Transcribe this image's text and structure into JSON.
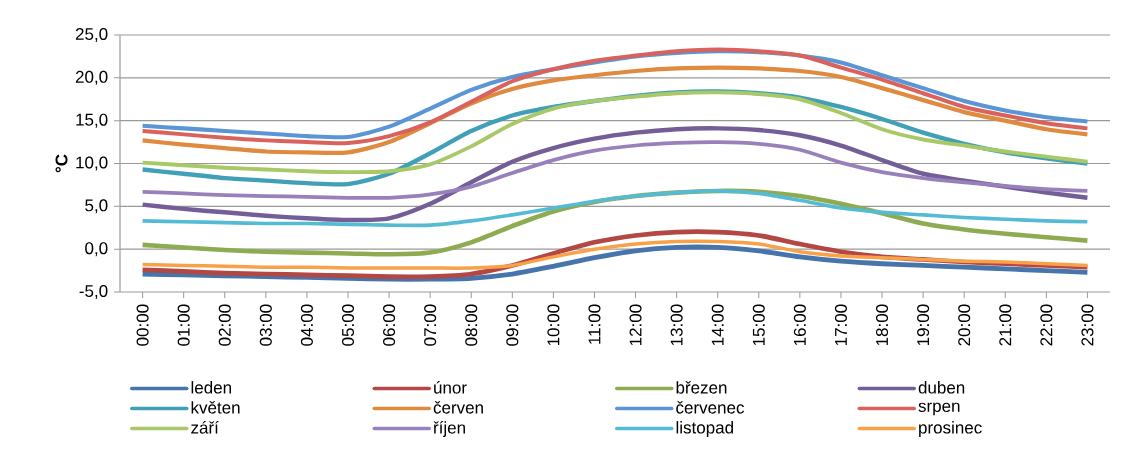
{
  "chart_data": {
    "type": "line",
    "ylabel": "°C",
    "categories": [
      "00:00",
      "01:00",
      "02:00",
      "03:00",
      "04:00",
      "05:00",
      "06:00",
      "07:00",
      "08:00",
      "09:00",
      "10:00",
      "11:00",
      "12:00",
      "13:00",
      "14:00",
      "15:00",
      "16:00",
      "17:00",
      "18:00",
      "19:00",
      "20:00",
      "21:00",
      "22:00",
      "23:00"
    ],
    "ylim": [
      -5,
      25
    ],
    "yticks": [
      {
        "value": -5,
        "label": "-5,0"
      },
      {
        "value": 0,
        "label": "0,0"
      },
      {
        "value": 5,
        "label": "5,0"
      },
      {
        "value": 10,
        "label": "10,0"
      },
      {
        "value": 15,
        "label": "15,0"
      },
      {
        "value": 20,
        "label": "20,0"
      },
      {
        "value": 25,
        "label": "25,0"
      }
    ],
    "grid": "y",
    "legend": "bottom",
    "marker": "none",
    "line_style": "solid",
    "series": [
      {
        "name": "leden",
        "color": "#4674ab",
        "values": [
          -2.9,
          -3.0,
          -3.1,
          -3.2,
          -3.3,
          -3.4,
          -3.5,
          -3.5,
          -3.4,
          -2.9,
          -2.0,
          -1.0,
          -0.2,
          0.2,
          0.2,
          -0.2,
          -0.9,
          -1.4,
          -1.7,
          -1.9,
          -2.1,
          -2.3,
          -2.5,
          -2.7
        ]
      },
      {
        "name": "únor",
        "color": "#b24744",
        "values": [
          -2.4,
          -2.6,
          -2.8,
          -2.9,
          -3.0,
          -3.1,
          -3.2,
          -3.2,
          -2.9,
          -1.9,
          -0.5,
          0.8,
          1.6,
          2.0,
          2.0,
          1.6,
          0.6,
          -0.3,
          -0.9,
          -1.2,
          -1.5,
          -1.7,
          -1.9,
          -2.1
        ]
      },
      {
        "name": "březen",
        "color": "#8fab52",
        "values": [
          0.5,
          0.2,
          -0.1,
          -0.3,
          -0.4,
          -0.5,
          -0.6,
          -0.4,
          0.8,
          2.7,
          4.4,
          5.5,
          6.2,
          6.6,
          6.8,
          6.7,
          6.2,
          5.3,
          4.2,
          3.0,
          2.3,
          1.8,
          1.4,
          1.0
        ]
      },
      {
        "name": "duben",
        "color": "#745e97",
        "values": [
          5.2,
          4.7,
          4.3,
          3.9,
          3.6,
          3.4,
          3.6,
          5.3,
          7.8,
          10.2,
          11.8,
          12.9,
          13.6,
          14.0,
          14.1,
          13.9,
          13.3,
          12.1,
          10.4,
          8.8,
          8.0,
          7.3,
          6.6,
          6.0
        ]
      },
      {
        "name": "květen",
        "color": "#40a0b7",
        "values": [
          9.3,
          8.8,
          8.3,
          8.0,
          7.7,
          7.6,
          8.8,
          11.2,
          13.8,
          15.6,
          16.6,
          17.3,
          17.9,
          18.3,
          18.4,
          18.2,
          17.7,
          16.6,
          15.2,
          13.6,
          12.3,
          11.3,
          10.6,
          10.0
        ]
      },
      {
        "name": "červen",
        "color": "#df8a3e",
        "values": [
          12.7,
          12.2,
          11.8,
          11.4,
          11.3,
          11.3,
          12.5,
          14.7,
          17.0,
          18.7,
          19.7,
          20.3,
          20.8,
          21.1,
          21.2,
          21.1,
          20.8,
          20.1,
          18.8,
          17.4,
          16.0,
          15.0,
          14.0,
          13.4
        ]
      },
      {
        "name": "červenec",
        "color": "#5a95d5",
        "values": [
          14.4,
          14.1,
          13.8,
          13.5,
          13.2,
          13.1,
          14.3,
          16.4,
          18.6,
          20.1,
          21.0,
          21.8,
          22.5,
          22.9,
          23.1,
          23.0,
          22.6,
          21.8,
          20.3,
          18.8,
          17.3,
          16.2,
          15.4,
          14.9
        ]
      },
      {
        "name": "srpen",
        "color": "#d9625c",
        "values": [
          13.8,
          13.4,
          13.0,
          12.7,
          12.5,
          12.4,
          13.2,
          14.8,
          17.2,
          19.6,
          21.0,
          22.0,
          22.6,
          23.1,
          23.3,
          23.1,
          22.6,
          21.2,
          19.8,
          18.2,
          16.6,
          15.6,
          14.7,
          14.1
        ]
      },
      {
        "name": "září",
        "color": "#a9c868",
        "values": [
          10.1,
          9.8,
          9.5,
          9.3,
          9.1,
          9.0,
          9.1,
          9.9,
          12.0,
          14.6,
          16.4,
          17.3,
          17.8,
          18.2,
          18.3,
          18.1,
          17.5,
          15.9,
          14.0,
          12.8,
          12.1,
          11.4,
          10.8,
          10.2
        ]
      },
      {
        "name": "říjen",
        "color": "#9880bb",
        "values": [
          6.7,
          6.5,
          6.3,
          6.2,
          6.1,
          6.0,
          6.0,
          6.4,
          7.3,
          8.9,
          10.4,
          11.5,
          12.1,
          12.4,
          12.5,
          12.3,
          11.6,
          10.1,
          9.0,
          8.3,
          7.8,
          7.4,
          7.0,
          6.8
        ]
      },
      {
        "name": "listopad",
        "color": "#55bbd5",
        "values": [
          3.3,
          3.2,
          3.1,
          3.0,
          3.0,
          2.9,
          2.8,
          2.8,
          3.3,
          4.0,
          4.8,
          5.6,
          6.2,
          6.6,
          6.8,
          6.5,
          5.7,
          4.8,
          4.3,
          4.0,
          3.7,
          3.5,
          3.3,
          3.2
        ]
      },
      {
        "name": "prosinec",
        "color": "#f9a148",
        "values": [
          -1.8,
          -1.9,
          -2.0,
          -2.1,
          -2.1,
          -2.2,
          -2.2,
          -2.2,
          -2.2,
          -1.9,
          -0.9,
          0.0,
          0.6,
          0.9,
          0.9,
          0.6,
          -0.3,
          -0.8,
          -1.0,
          -1.2,
          -1.4,
          -1.5,
          -1.7,
          -1.9
        ]
      }
    ]
  }
}
